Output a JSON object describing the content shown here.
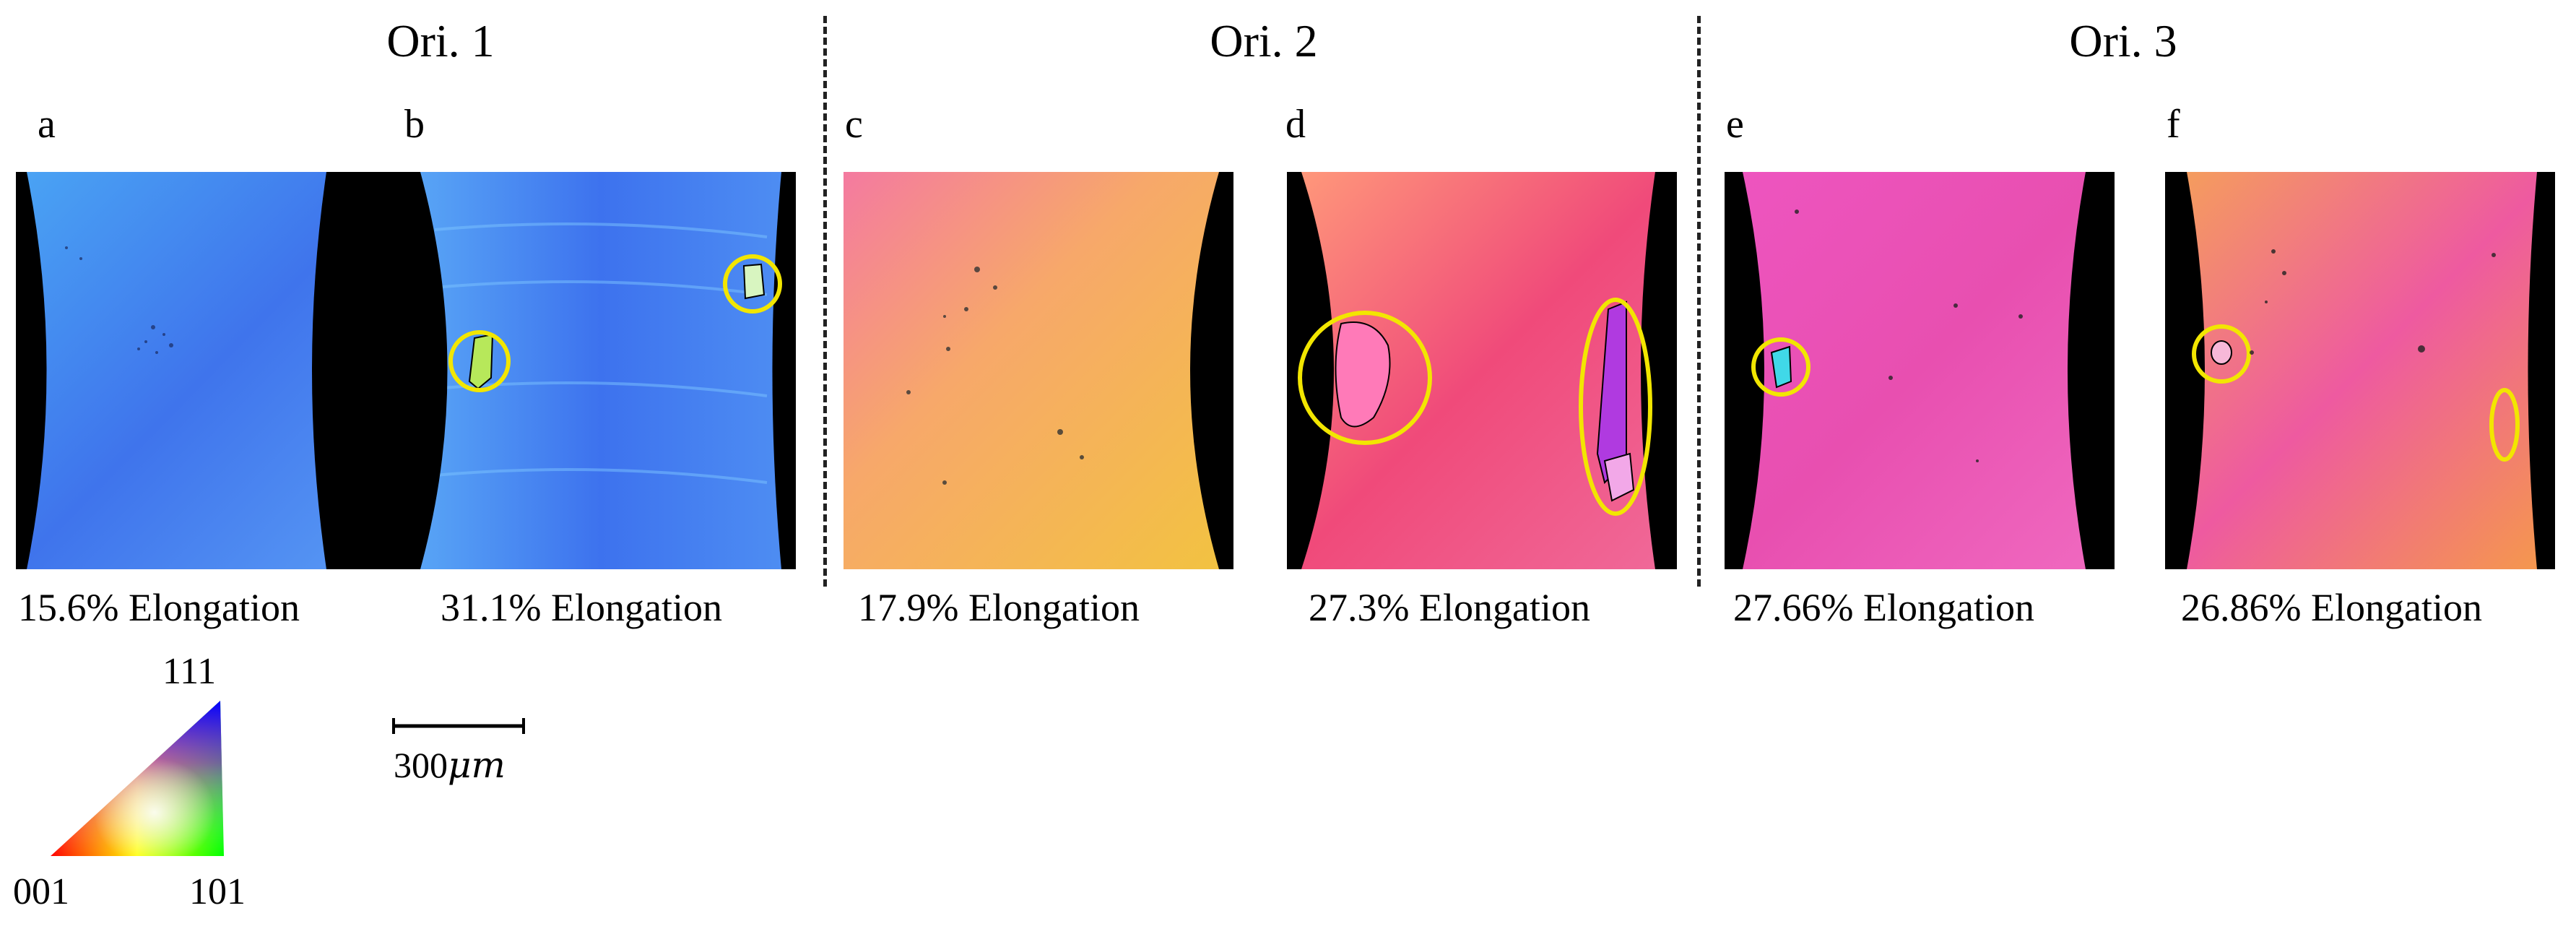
{
  "groups": [
    {
      "title": "Ori. 1"
    },
    {
      "title": "Ori. 2"
    },
    {
      "title": "Ori. 3"
    }
  ],
  "panels": [
    {
      "letter": "a",
      "caption": "15.6% Elongation",
      "base_color": "#4a86f0",
      "accent_color": "#3a6be8"
    },
    {
      "letter": "b",
      "caption": "31.1% Elongation",
      "base_color": "#3f7cf2",
      "accent_color": "#69b4ff"
    },
    {
      "letter": "c",
      "caption": "17.9% Elongation",
      "base_color": "#f59a4a",
      "accent_color": "#f47aa0"
    },
    {
      "letter": "d",
      "caption": "27.3% Elongation",
      "base_color": "#f0507a",
      "accent_color": "#ff8a9a"
    },
    {
      "letter": "e",
      "caption": "27.66% Elongation",
      "base_color": "#e84fb0",
      "accent_color": "#ff7acd"
    },
    {
      "letter": "f",
      "caption": "26.86% Elongation",
      "base_color": "#f08a4a",
      "accent_color": "#ee5aa0"
    }
  ],
  "legend": {
    "top_label": "111",
    "left_label": "001",
    "right_label": "101"
  },
  "scale_bar": {
    "value": "300",
    "unit": "μm"
  },
  "colors": {
    "highlight_circle": "#f2e600",
    "void": "#000000"
  }
}
